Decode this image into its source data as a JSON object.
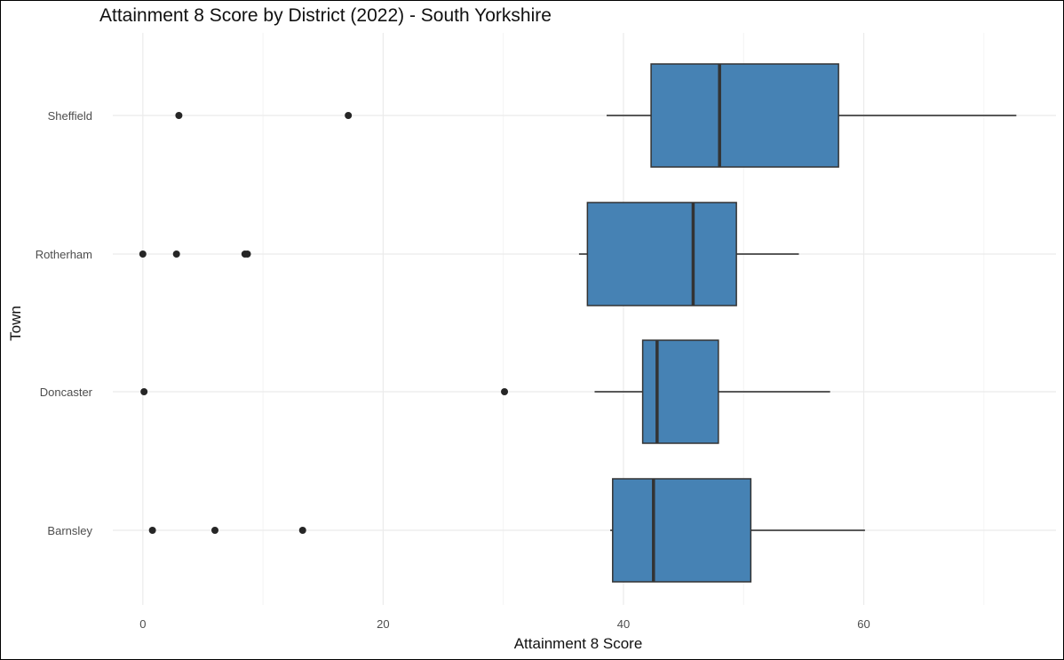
{
  "chart_data": {
    "type": "boxplot",
    "orientation": "horizontal",
    "title": "Attainment 8 Score by District (2022) - South Yorkshire",
    "xlabel": "Attainment 8 Score",
    "ylabel": "Town",
    "xlim": [
      -2.5,
      76
    ],
    "x_ticks": [
      0,
      20,
      40,
      60
    ],
    "x_tick_labels": [
      "0",
      "20",
      "40",
      "60"
    ],
    "grid": true,
    "legend": "none",
    "categories": [
      "Sheffield",
      "Rotherham",
      "Doncaster",
      "Barnsley"
    ],
    "series": [
      {
        "category": "Sheffield",
        "whisker_low": 38.6,
        "q1": 42.3,
        "median": 48.0,
        "q3": 57.9,
        "whisker_high": 72.7,
        "outliers": [
          3.0,
          17.1
        ]
      },
      {
        "category": "Rotherham",
        "whisker_low": 36.3,
        "q1": 37.0,
        "median": 45.8,
        "q3": 49.4,
        "whisker_high": 54.6,
        "outliers": [
          0.0,
          2.8,
          8.5,
          8.7
        ]
      },
      {
        "category": "Doncaster",
        "whisker_low": 37.6,
        "q1": 41.6,
        "median": 42.8,
        "q3": 47.9,
        "whisker_high": 57.2,
        "outliers": [
          0.1,
          30.1
        ]
      },
      {
        "category": "Barnsley",
        "whisker_low": 38.9,
        "q1": 39.1,
        "median": 42.5,
        "q3": 50.6,
        "whisker_high": 60.1,
        "outliers": [
          0.8,
          6.0,
          13.3
        ]
      }
    ]
  },
  "colors": {
    "box_fill": "#4682b4",
    "box_outline": "#333333",
    "whisker": "#595959",
    "outlier": "#262626",
    "grid_major": "#ebebeb",
    "grid_minor": "#f4f4f4"
  }
}
